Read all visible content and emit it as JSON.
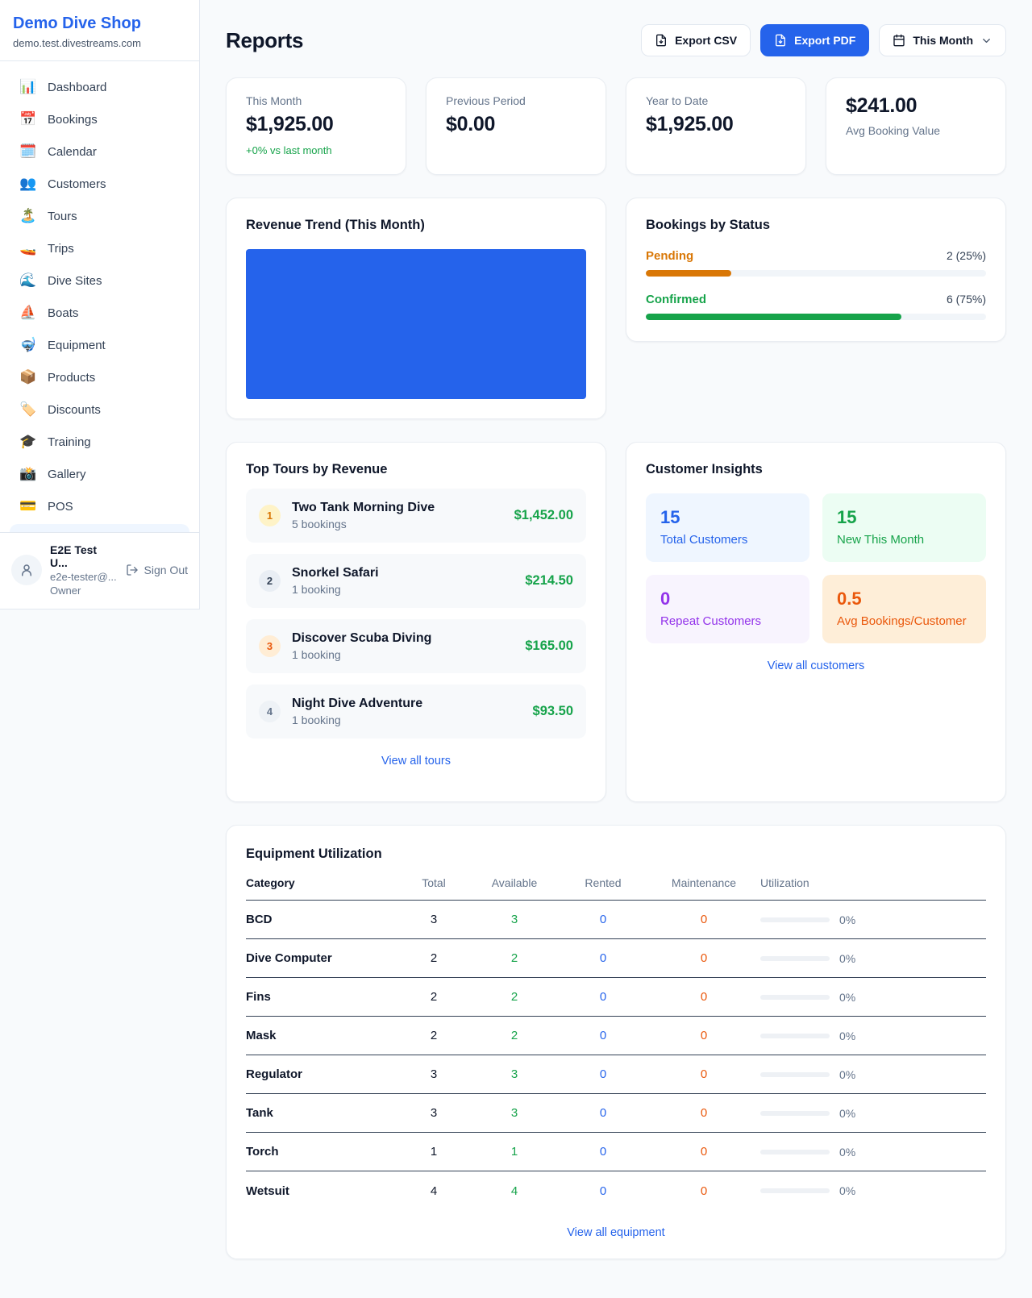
{
  "colors": {
    "accent_blue": "#2563eb",
    "green": "#16a34a",
    "amber": "#d97706",
    "orange": "#ea580c",
    "purple": "#9333ea",
    "page_bg": "#f8fafc"
  },
  "sidebar": {
    "brand": {
      "name": "Demo Dive Shop",
      "domain": "demo.test.divestreams.com"
    },
    "items": [
      {
        "icon": "📊",
        "label": "Dashboard"
      },
      {
        "icon": "📅",
        "label": "Bookings"
      },
      {
        "icon": "🗓️",
        "label": "Calendar"
      },
      {
        "icon": "👥",
        "label": "Customers"
      },
      {
        "icon": "🏝️",
        "label": "Tours"
      },
      {
        "icon": "🚤",
        "label": "Trips"
      },
      {
        "icon": "🌊",
        "label": "Dive Sites"
      },
      {
        "icon": "⛵",
        "label": "Boats"
      },
      {
        "icon": "🤿",
        "label": "Equipment"
      },
      {
        "icon": "📦",
        "label": "Products"
      },
      {
        "icon": "🏷️",
        "label": "Discounts"
      },
      {
        "icon": "🎓",
        "label": "Training"
      },
      {
        "icon": "📸",
        "label": "Gallery"
      },
      {
        "icon": "💳",
        "label": "POS"
      }
    ],
    "user": {
      "name": "E2E Test U...",
      "email": "e2e-tester@...",
      "role": "Owner",
      "sign_out": "Sign Out"
    }
  },
  "header": {
    "title": "Reports",
    "export_csv": "Export CSV",
    "export_pdf": "Export PDF",
    "period": "This Month"
  },
  "stats": [
    {
      "label": "This Month",
      "value": "$1,925.00",
      "delta": "+0% vs last month"
    },
    {
      "label": "Previous Period",
      "value": "$0.00"
    },
    {
      "label": "Year to Date",
      "value": "$1,925.00"
    },
    {
      "value": "$241.00",
      "label": "Avg Booking Value"
    }
  ],
  "revenue_trend": {
    "title": "Revenue Trend (This Month)",
    "fill_color": "#2563eb"
  },
  "bookings_by_status": {
    "title": "Bookings by Status",
    "rows": [
      {
        "label": "Pending",
        "value": "2 (25%)",
        "percent": 25,
        "color": "#d97706"
      },
      {
        "label": "Confirmed",
        "value": "6 (75%)",
        "percent": 75,
        "color": "#16a34a"
      }
    ]
  },
  "top_tours": {
    "title": "Top Tours by Revenue",
    "link": "View all tours",
    "items": [
      {
        "rank": "1",
        "name": "Two Tank Morning Dive",
        "bookings": "5 bookings",
        "revenue": "$1,452.00"
      },
      {
        "rank": "2",
        "name": "Snorkel Safari",
        "bookings": "1 booking",
        "revenue": "$214.50"
      },
      {
        "rank": "3",
        "name": "Discover Scuba Diving",
        "bookings": "1 booking",
        "revenue": "$165.00"
      },
      {
        "rank": "4",
        "name": "Night Dive Adventure",
        "bookings": "1 booking",
        "revenue": "$93.50"
      }
    ]
  },
  "customer_insights": {
    "title": "Customer Insights",
    "link": "View all customers",
    "tiles": [
      {
        "value": "15",
        "label": "Total Customers"
      },
      {
        "value": "15",
        "label": "New This Month"
      },
      {
        "value": "0",
        "label": "Repeat Customers"
      },
      {
        "value": "0.5",
        "label": "Avg Bookings/Customer"
      }
    ]
  },
  "equipment": {
    "title": "Equipment Utilization",
    "link": "View all equipment",
    "columns": [
      "Category",
      "Total",
      "Available",
      "Rented",
      "Maintenance",
      "Utilization"
    ],
    "rows": [
      {
        "category": "BCD",
        "total": "3",
        "available": "3",
        "rented": "0",
        "maintenance": "0",
        "utilization": "0%"
      },
      {
        "category": "Dive Computer",
        "total": "2",
        "available": "2",
        "rented": "0",
        "maintenance": "0",
        "utilization": "0%"
      },
      {
        "category": "Fins",
        "total": "2",
        "available": "2",
        "rented": "0",
        "maintenance": "0",
        "utilization": "0%"
      },
      {
        "category": "Mask",
        "total": "2",
        "available": "2",
        "rented": "0",
        "maintenance": "0",
        "utilization": "0%"
      },
      {
        "category": "Regulator",
        "total": "3",
        "available": "3",
        "rented": "0",
        "maintenance": "0",
        "utilization": "0%"
      },
      {
        "category": "Tank",
        "total": "3",
        "available": "3",
        "rented": "0",
        "maintenance": "0",
        "utilization": "0%"
      },
      {
        "category": "Torch",
        "total": "1",
        "available": "1",
        "rented": "0",
        "maintenance": "0",
        "utilization": "0%"
      },
      {
        "category": "Wetsuit",
        "total": "4",
        "available": "4",
        "rented": "0",
        "maintenance": "0",
        "utilization": "0%"
      }
    ]
  }
}
